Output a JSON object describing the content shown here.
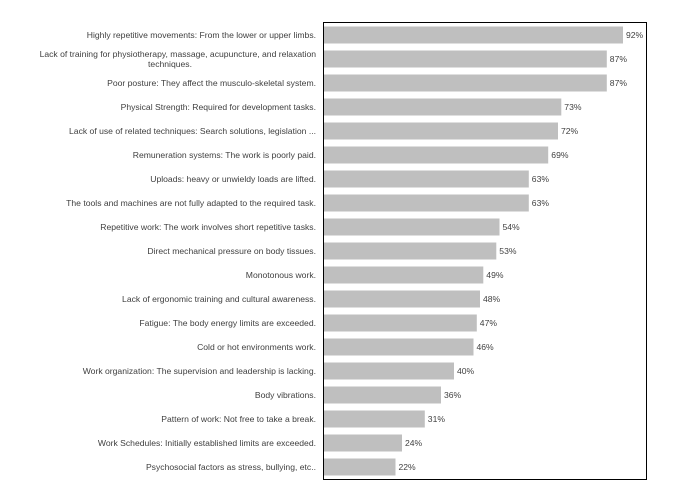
{
  "chart_data": {
    "type": "bar",
    "orientation": "horizontal",
    "title": "",
    "xlabel": "",
    "ylabel": "",
    "xlim": [
      0,
      100
    ],
    "grid": false,
    "legend": "none",
    "bar_color": "#bfbfbf",
    "categories": [
      "Highly repetitive movements: From the lower or upper limbs.",
      "Lack of training for physiotherapy, massage, acupuncture, and relaxation techniques.",
      "Poor posture: They affect the musculo-skeletal system.",
      "Physical Strength: Required for development tasks.",
      "Lack of use of related techniques: Search solutions, legislation ...",
      "Remuneration systems: The work is poorly paid.",
      "Uploads: heavy or unwieldy loads are lifted.",
      "The tools and machines are not fully adapted to the required task.",
      "Repetitive work: The work involves short repetitive tasks.",
      "Direct mechanical pressure on body tissues.",
      "Monotonous work.",
      "Lack of ergonomic training and cultural awareness.",
      "Fatigue: The body energy limits are exceeded.",
      "Cold or hot environments work.",
      "Work organization: The supervision and leadership is lacking.",
      "Body vibrations.",
      "Pattern of work: Not free to take a break.",
      "Work Schedules: Initially established limits are exceeded.",
      "Psychosocial factors as stress, bullying, etc.."
    ],
    "values": [
      92,
      87,
      87,
      73,
      72,
      69,
      63,
      63,
      54,
      53,
      49,
      48,
      47,
      46,
      40,
      36,
      31,
      24,
      22
    ],
    "value_labels": [
      "92%",
      "87%",
      "87%",
      "73%",
      "72%",
      "69%",
      "63%",
      "63%",
      "54%",
      "53%",
      "49%",
      "48%",
      "47%",
      "46%",
      "40%",
      "36%",
      "31%",
      "24%",
      "22%"
    ]
  }
}
